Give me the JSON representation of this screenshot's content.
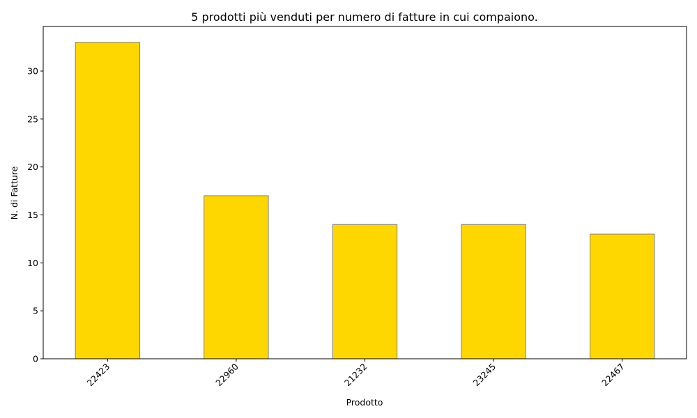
{
  "chart_data": {
    "type": "bar",
    "title": "5 prodotti più venduti per numero di fatture in cui compaiono.",
    "xlabel": "Prodotto",
    "ylabel": "N. di Fatture",
    "categories": [
      "22423",
      "22960",
      "21232",
      "23245",
      "22467"
    ],
    "values": [
      33,
      17,
      14,
      14,
      13
    ],
    "ylim": [
      0,
      34.65
    ],
    "yticks": [
      0,
      5,
      10,
      15,
      20,
      25,
      30
    ],
    "ytick_labels": [
      "0",
      "5",
      "10",
      "15",
      "20",
      "25",
      "30"
    ],
    "bar_color": "#FFD700",
    "bar_edge_color": "#808080",
    "grid": false,
    "legend": "none",
    "x_tick_rotation_deg": 45
  }
}
